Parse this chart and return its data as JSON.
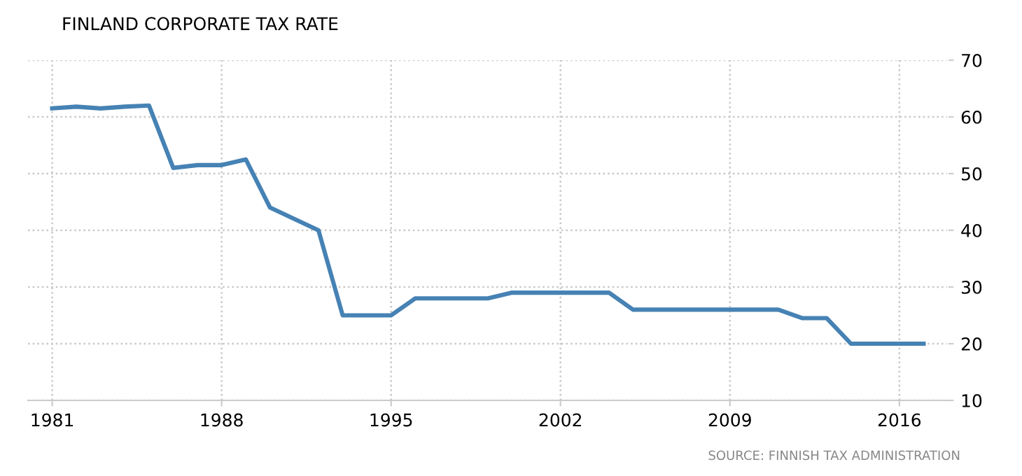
{
  "chart_data": {
    "type": "line",
    "title": "FINLAND CORPORATE TAX RATE",
    "x": [
      1981,
      1982,
      1983,
      1984,
      1985,
      1986,
      1987,
      1988,
      1989,
      1990,
      1991,
      1992,
      1993,
      1994,
      1995,
      1996,
      1997,
      1998,
      1999,
      2000,
      2001,
      2002,
      2003,
      2004,
      2005,
      2006,
      2007,
      2008,
      2009,
      2010,
      2011,
      2012,
      2013,
      2014,
      2015,
      2016,
      2017
    ],
    "series": [
      {
        "color": "#4682b4",
        "values": [
          61.5,
          61.8,
          61.5,
          61.8,
          62,
          51,
          51.5,
          51.5,
          52.5,
          44,
          42,
          40,
          25,
          25,
          25,
          28,
          28,
          28,
          28,
          29,
          29,
          29,
          29,
          29,
          26,
          26,
          26,
          26,
          26,
          26,
          26,
          24.5,
          24.5,
          20,
          20,
          20,
          20
        ]
      }
    ],
    "xlim": [
      1980,
      2018
    ],
    "xticks": [
      1981,
      1988,
      1995,
      2002,
      2009,
      2016
    ],
    "ylim": [
      10,
      70
    ],
    "yticks": [
      10,
      20,
      30,
      40,
      50,
      60,
      70
    ],
    "grid": true,
    "line_style": "solid",
    "annotations": [
      "SOURCE: FINNISH TAX ADMINISTRATION"
    ]
  }
}
